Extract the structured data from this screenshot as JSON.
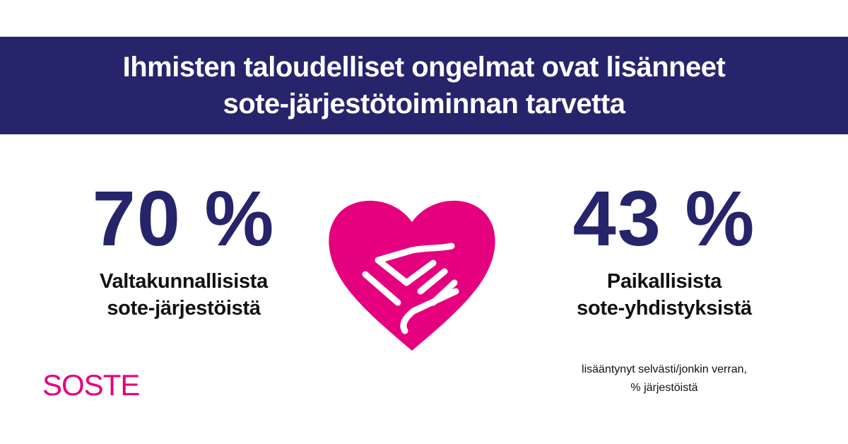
{
  "header": {
    "line1": "Ihmisten taloudelliset ongelmat ovat lisänneet",
    "line2": "sote-järjestötoiminnan tarvetta"
  },
  "stats": {
    "left": {
      "value": "70 %",
      "label1": "Valtakunnallisista",
      "label2": "sote-järjestöistä"
    },
    "right": {
      "value": "43 %",
      "label1": "Paikallisista",
      "label2": "sote-yhdistyksistä"
    }
  },
  "note": {
    "line1": "lisääntynyt selvästi/jonkin verran,",
    "line2": "% järjestöistä"
  },
  "logo": {
    "text": "SOSTE"
  },
  "icons": {
    "center": "heart-handshake-icon"
  },
  "colors": {
    "banner": "#26246b",
    "accent": "#e5007e",
    "stat_number": "#26246b",
    "text": "#111111"
  }
}
